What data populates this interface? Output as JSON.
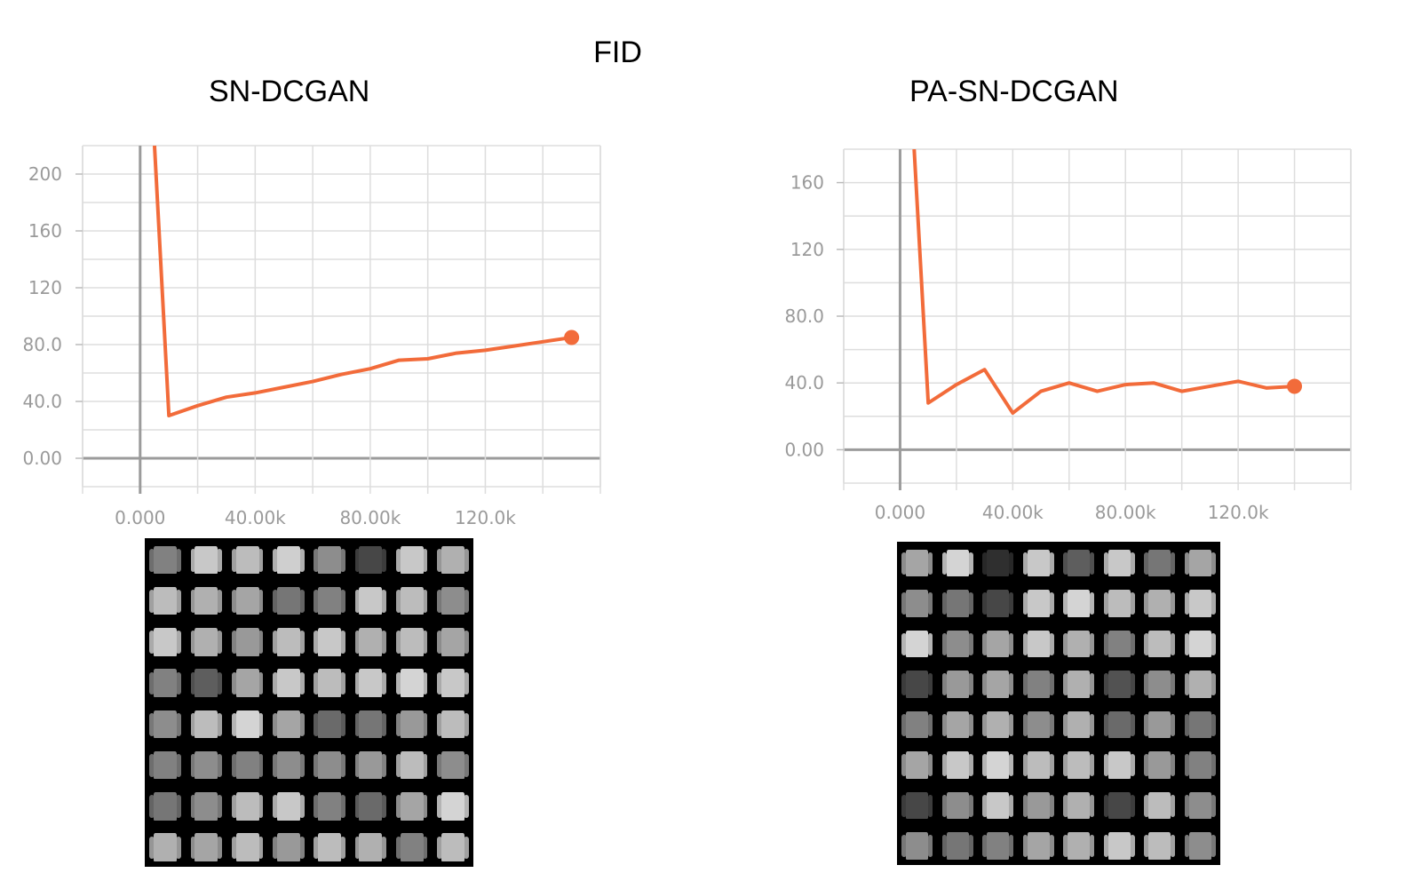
{
  "figure": {
    "title": "FID"
  },
  "chart_data": [
    {
      "type": "line",
      "title": "SN-DCGAN",
      "xlabel": "",
      "ylabel": "",
      "x_ticks": [
        0,
        40000,
        80000,
        120000
      ],
      "x_tick_labels": [
        "0.000",
        "40.00k",
        "80.00k",
        "120.0k"
      ],
      "y_ticks": [
        0,
        40,
        80,
        120,
        160,
        200
      ],
      "y_tick_labels": [
        "0.00",
        "40.0",
        "80.0",
        "120",
        "160",
        "200"
      ],
      "xlim": [
        -20000,
        160000
      ],
      "ylim": [
        -20,
        220
      ],
      "grid": true,
      "legend": "none",
      "color": "#f26b3a",
      "x": [
        5000,
        10000,
        20000,
        30000,
        40000,
        50000,
        60000,
        70000,
        80000,
        90000,
        100000,
        110000,
        120000,
        130000,
        140000,
        150000
      ],
      "y": [
        220,
        30,
        37,
        43,
        46,
        50,
        54,
        59,
        63,
        69,
        70,
        74,
        76,
        79,
        82,
        85
      ]
    },
    {
      "type": "line",
      "title": "PA-SN-DCGAN",
      "xlabel": "",
      "ylabel": "",
      "x_ticks": [
        0,
        40000,
        80000,
        120000
      ],
      "x_tick_labels": [
        "0.000",
        "40.00k",
        "80.00k",
        "120.0k"
      ],
      "y_ticks": [
        0,
        40,
        80,
        120,
        160
      ],
      "y_tick_labels": [
        "0.00",
        "40.0",
        "80.0",
        "120",
        "160"
      ],
      "xlim": [
        -20000,
        160000
      ],
      "ylim": [
        -20,
        180
      ],
      "grid": true,
      "legend": "none",
      "color": "#f26b3a",
      "x": [
        5000,
        10000,
        20000,
        30000,
        40000,
        50000,
        60000,
        70000,
        80000,
        90000,
        100000,
        110000,
        120000,
        130000,
        140000
      ],
      "y": [
        180,
        28,
        39,
        48,
        22,
        35,
        40,
        35,
        39,
        40,
        35,
        38,
        41,
        37,
        38
      ]
    }
  ],
  "sample_grids": {
    "left_brightness": [
      [
        0.55,
        0.85,
        0.8,
        0.88,
        0.6,
        0.3,
        0.85,
        0.75
      ],
      [
        0.8,
        0.75,
        0.7,
        0.5,
        0.55,
        0.85,
        0.8,
        0.6
      ],
      [
        0.85,
        0.75,
        0.65,
        0.8,
        0.85,
        0.75,
        0.8,
        0.7
      ],
      [
        0.55,
        0.4,
        0.7,
        0.85,
        0.8,
        0.85,
        0.9,
        0.85
      ],
      [
        0.6,
        0.8,
        0.9,
        0.7,
        0.45,
        0.5,
        0.65,
        0.8
      ],
      [
        0.55,
        0.6,
        0.55,
        0.6,
        0.6,
        0.65,
        0.8,
        0.6
      ],
      [
        0.5,
        0.6,
        0.8,
        0.85,
        0.55,
        0.45,
        0.7,
        0.9
      ],
      [
        0.75,
        0.7,
        0.8,
        0.65,
        0.8,
        0.75,
        0.55,
        0.8
      ]
    ],
    "right_brightness": [
      [
        0.7,
        0.9,
        0.2,
        0.85,
        0.4,
        0.85,
        0.5,
        0.7
      ],
      [
        0.6,
        0.5,
        0.3,
        0.85,
        0.9,
        0.8,
        0.75,
        0.85
      ],
      [
        0.9,
        0.6,
        0.7,
        0.85,
        0.75,
        0.55,
        0.8,
        0.9
      ],
      [
        0.3,
        0.65,
        0.7,
        0.55,
        0.75,
        0.35,
        0.6,
        0.75
      ],
      [
        0.55,
        0.7,
        0.75,
        0.6,
        0.75,
        0.45,
        0.65,
        0.5
      ],
      [
        0.7,
        0.85,
        0.9,
        0.8,
        0.8,
        0.85,
        0.65,
        0.55
      ],
      [
        0.3,
        0.6,
        0.85,
        0.65,
        0.75,
        0.3,
        0.8,
        0.6
      ],
      [
        0.6,
        0.5,
        0.55,
        0.7,
        0.75,
        0.85,
        0.8,
        0.6
      ]
    ]
  }
}
